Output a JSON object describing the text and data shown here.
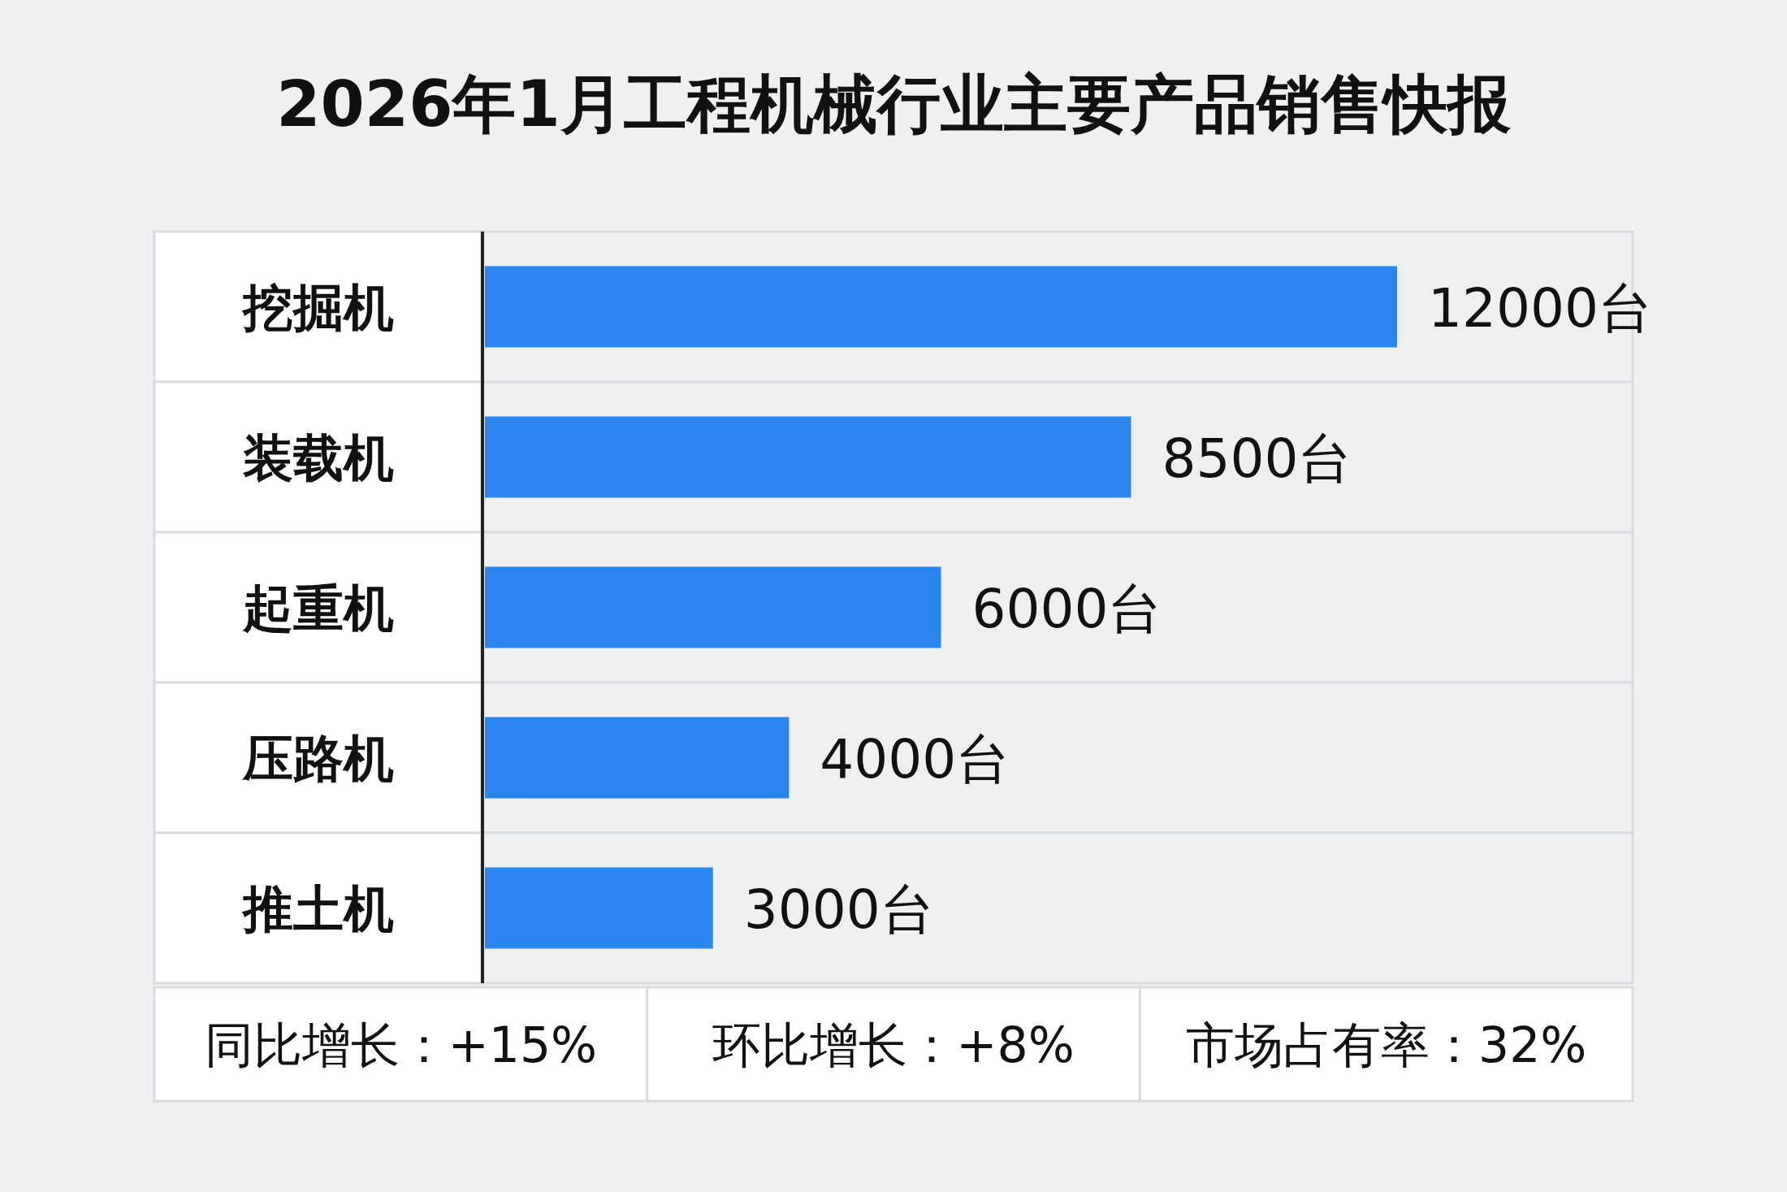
{
  "chart_data": {
    "type": "bar",
    "orientation": "horizontal",
    "title": "2026年1月工程机械行业主要产品销售快报",
    "categories": [
      "挖掘机",
      "装载机",
      "起重机",
      "压路机",
      "推土机"
    ],
    "values": [
      12000,
      8500,
      6000,
      4000,
      3000
    ],
    "value_labels": [
      "12000台",
      "8500台",
      "6000台",
      "4000台",
      "3000台"
    ],
    "color": "#2a86ec",
    "annotations": [
      "同比增长：+15%",
      "环比增长：+8%",
      "市场占有率：32%"
    ]
  }
}
